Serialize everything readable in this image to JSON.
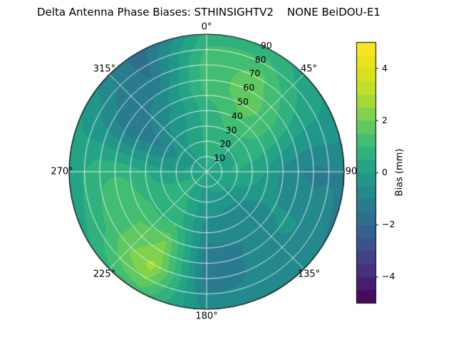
{
  "title": "Delta Antenna Phase Biases: STHINSIGHTV2    NONE BeiDOU-E1",
  "chart_data": {
    "type": "heatmap",
    "projection": "polar",
    "title": "Delta Antenna Phase Biases: STHINSIGHTV2    NONE BeiDOU-E1",
    "azimuth_tick_labels": [
      "0°",
      "45°",
      "90",
      "135°",
      "180°",
      "225°",
      "270°",
      "315°"
    ],
    "azimuth_tick_angles_deg": [
      0,
      45,
      90,
      135,
      180,
      225,
      270,
      315
    ],
    "radial_tick_labels": [
      "10",
      "20",
      "30",
      "40",
      "50",
      "60",
      "70",
      "80",
      "90"
    ],
    "radial_tick_values": [
      10,
      20,
      30,
      40,
      50,
      60,
      70,
      80,
      90
    ],
    "radial_max": 90,
    "radial_label_angle_deg": 22.5,
    "grid_color": "#ffffff",
    "outline_color": "#000000",
    "colorbar": {
      "label": "Bias (mm)",
      "ticks": [
        -4,
        -2,
        0,
        2,
        4
      ],
      "tick_labels": [
        "−4",
        "−2",
        "0",
        "2",
        "4"
      ],
      "range": [
        -5,
        5
      ],
      "level_step": 0.5,
      "colormap": "viridis",
      "viridis_stops": [
        "#440154",
        "#482878",
        "#3e4a89",
        "#31688e",
        "#26828e",
        "#1f9e89",
        "#35b779",
        "#6ece58",
        "#b5de2b",
        "#dfe318",
        "#fde725"
      ]
    },
    "field": {
      "azimuth_deg": [
        0,
        30,
        60,
        90,
        120,
        150,
        180,
        210,
        240,
        270,
        300,
        330
      ],
      "radius": [
        0,
        18,
        36,
        54,
        72,
        90
      ],
      "bias_mm": [
        [
          0.3,
          0.3,
          0.3,
          0.3,
          0.3,
          0.3,
          0.3,
          0.3,
          0.3,
          0.3,
          0.3,
          0.3
        ],
        [
          0.5,
          0.7,
          0.6,
          0.4,
          0.0,
          -0.1,
          0.0,
          0.3,
          0.5,
          0.1,
          -0.3,
          0.1
        ],
        [
          0.9,
          1.3,
          0.9,
          0.0,
          -0.4,
          -0.7,
          -0.9,
          0.7,
          0.9,
          0.5,
          -1.2,
          -0.4
        ],
        [
          1.3,
          1.7,
          0.7,
          -0.6,
          -0.5,
          -1.0,
          -1.4,
          2.2,
          1.5,
          0.7,
          -1.4,
          -0.6
        ],
        [
          1.1,
          1.7,
          0.3,
          -1.1,
          -0.7,
          -0.8,
          -1.1,
          2.6,
          1.1,
          0.8,
          -0.7,
          -1.5
        ],
        [
          0.7,
          0.9,
          -0.1,
          -1.2,
          -0.9,
          -0.5,
          -0.6,
          1.1,
          0.5,
          0.4,
          -0.2,
          -1.9
        ]
      ]
    }
  }
}
